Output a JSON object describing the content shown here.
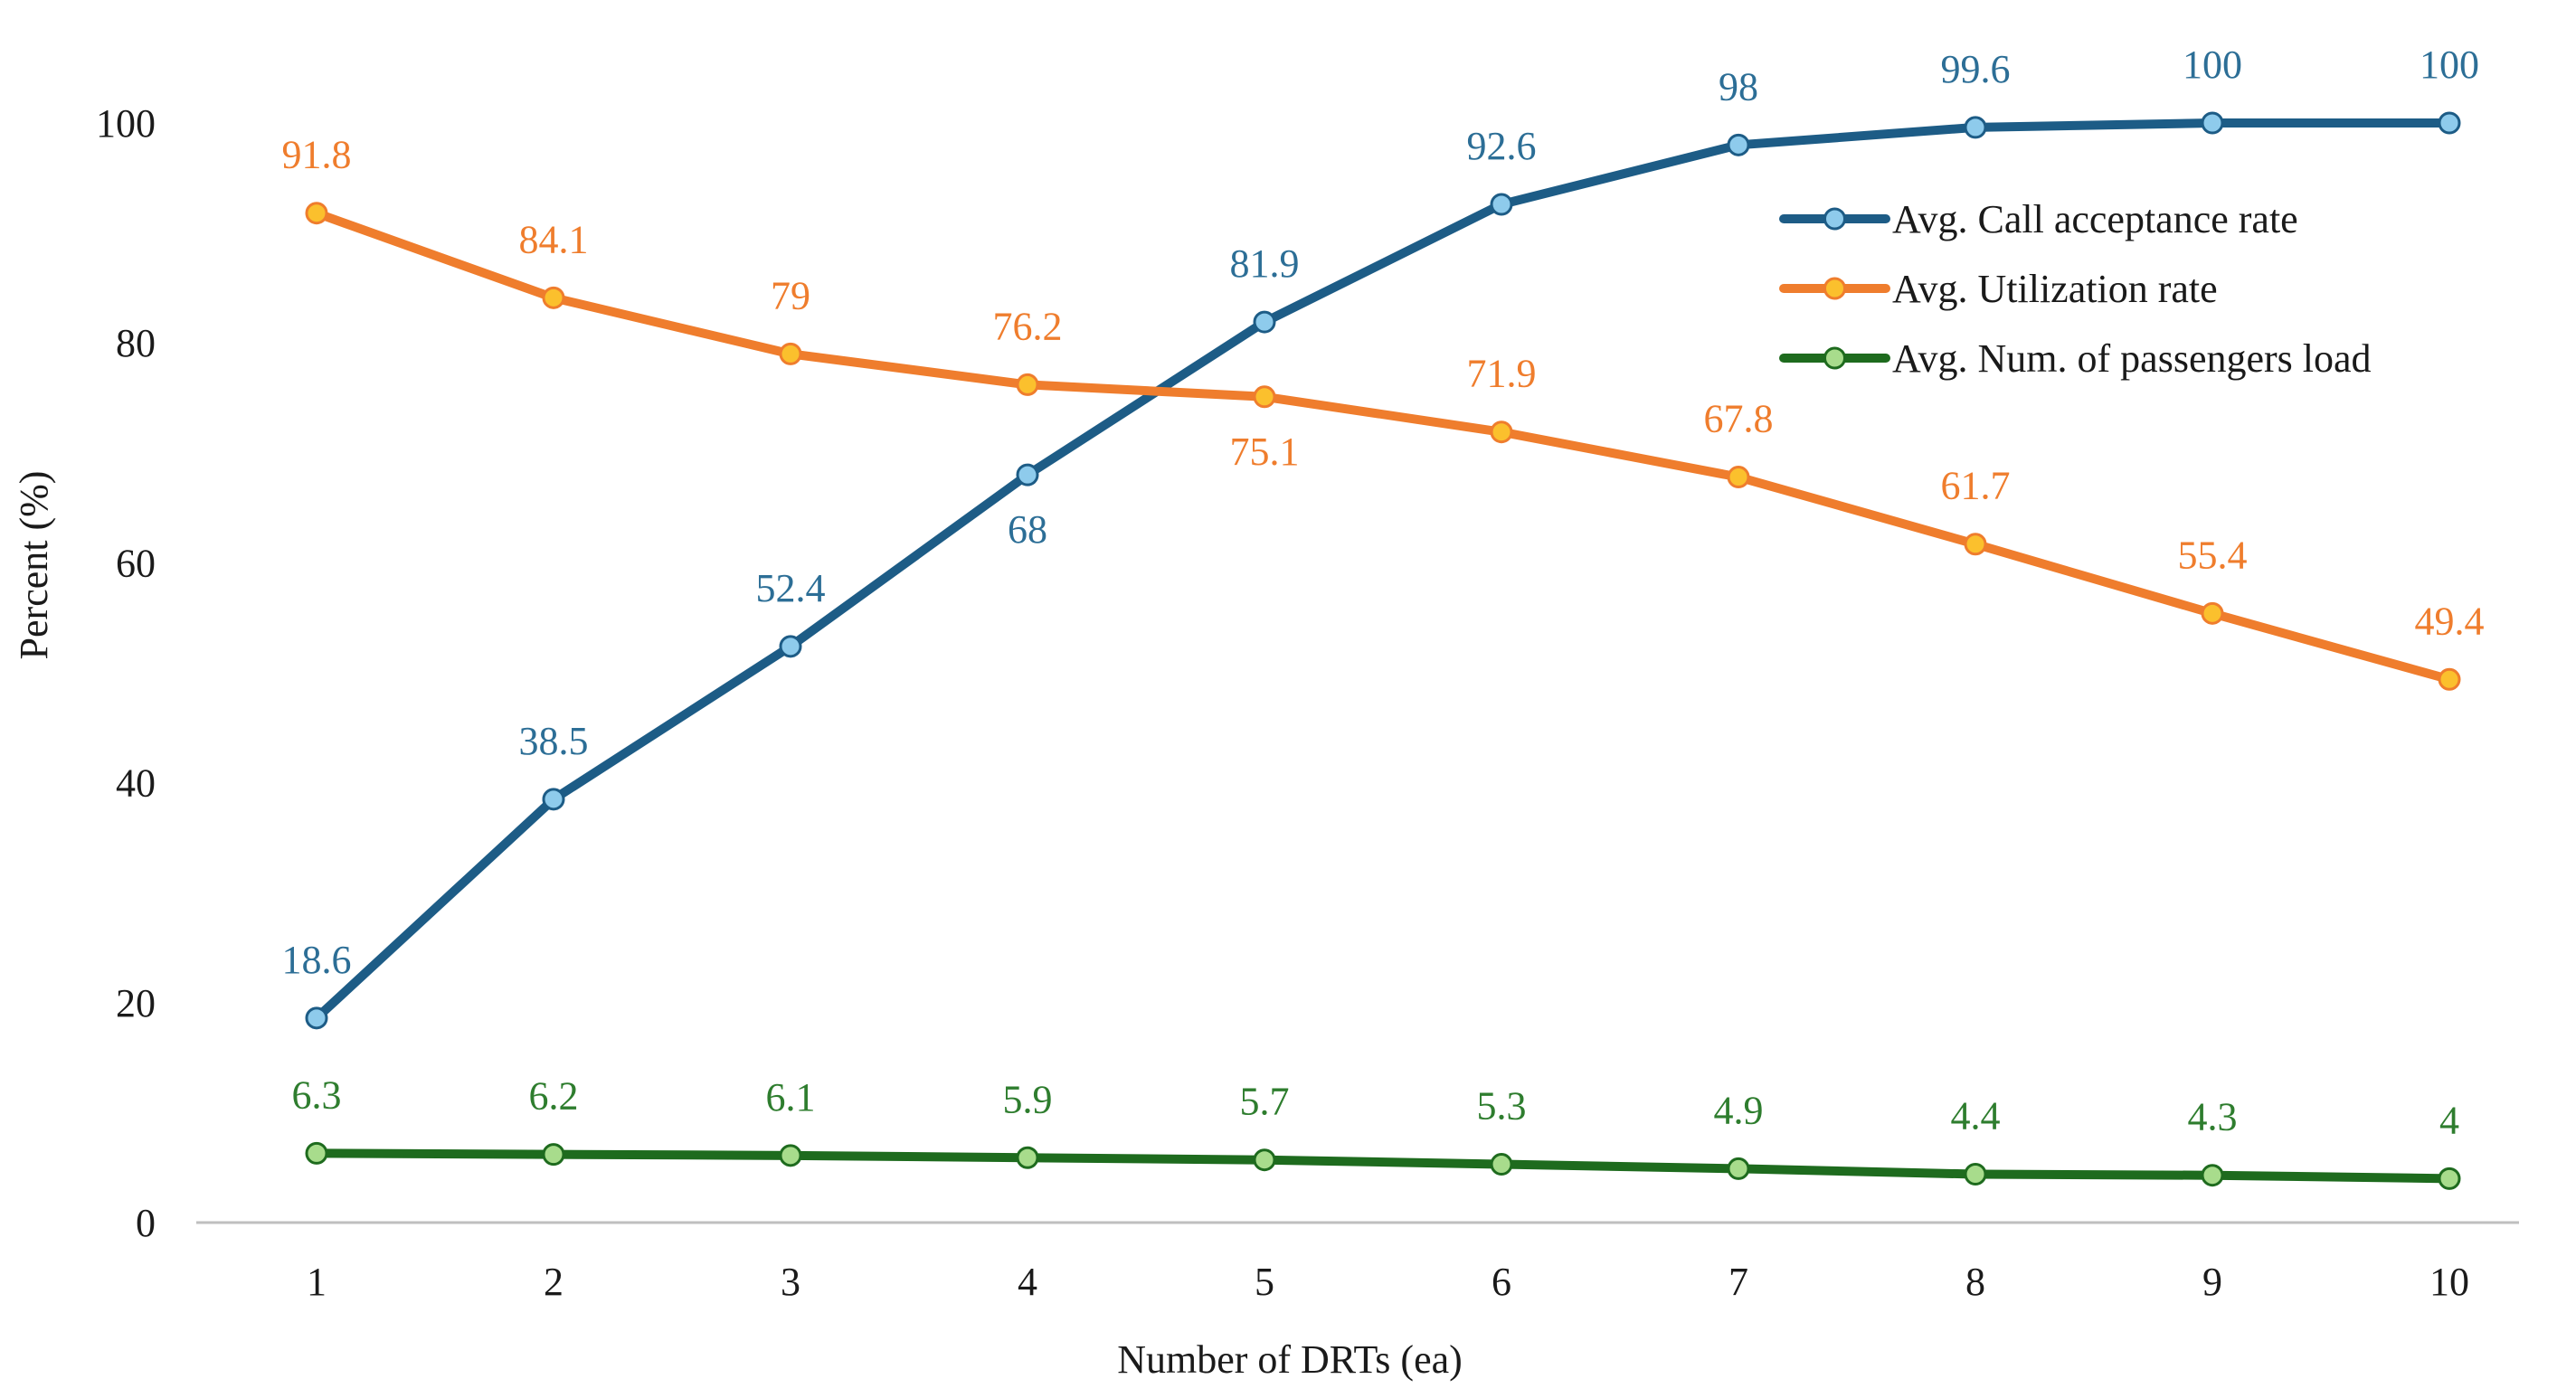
{
  "chart_data": {
    "type": "line",
    "xlabel": "Number of DRTs (ea)",
    "ylabel": "Percent (%)",
    "ylim": [
      0,
      100
    ],
    "yticks": [
      0,
      20,
      40,
      60,
      80,
      100
    ],
    "categories": [
      "1",
      "2",
      "3",
      "4",
      "5",
      "6",
      "7",
      "8",
      "9",
      "10"
    ],
    "grid": false,
    "legend_position": "top-right",
    "series": [
      {
        "name": "Avg. Call acceptance rate",
        "values": [
          18.6,
          38.5,
          52.4,
          68,
          81.9,
          92.6,
          98,
          99.6,
          100,
          100
        ],
        "labels": [
          "18.6",
          "38.5",
          "52.4",
          "68",
          "81.9",
          "92.6",
          "98",
          "99.6",
          "100",
          "100"
        ],
        "line_color": "#1d5c86",
        "marker_fill": "#8ecbec",
        "label_color": "#2c6e96",
        "label_placement": [
          "above",
          "above",
          "above",
          "below",
          "above",
          "above",
          "above",
          "above",
          "above",
          "above"
        ]
      },
      {
        "name": "Avg. Utilization rate",
        "values": [
          91.8,
          84.1,
          79,
          76.2,
          75.1,
          71.9,
          67.8,
          61.7,
          55.4,
          49.4
        ],
        "labels": [
          "91.8",
          "84.1",
          "79",
          "76.2",
          "75.1",
          "71.9",
          "67.8",
          "61.7",
          "55.4",
          "49.4"
        ],
        "line_color": "#ef7d2d",
        "marker_fill": "#fbc02d",
        "label_color": "#ef7d2d",
        "label_placement": [
          "above",
          "above",
          "above",
          "above",
          "below",
          "above",
          "above",
          "above",
          "above",
          "above"
        ]
      },
      {
        "name": "Avg. Num. of passengers load",
        "values": [
          6.3,
          6.2,
          6.1,
          5.9,
          5.7,
          5.3,
          4.9,
          4.4,
          4.3,
          4
        ],
        "labels": [
          "6.3",
          "6.2",
          "6.1",
          "5.9",
          "5.7",
          "5.3",
          "4.9",
          "4.4",
          "4.3",
          "4"
        ],
        "line_color": "#1e6b1e",
        "marker_fill": "#a8dc8c",
        "label_color": "#2e7d2e",
        "label_placement": [
          "above",
          "above",
          "above",
          "above",
          "above",
          "above",
          "above",
          "above",
          "above",
          "above"
        ]
      }
    ]
  }
}
